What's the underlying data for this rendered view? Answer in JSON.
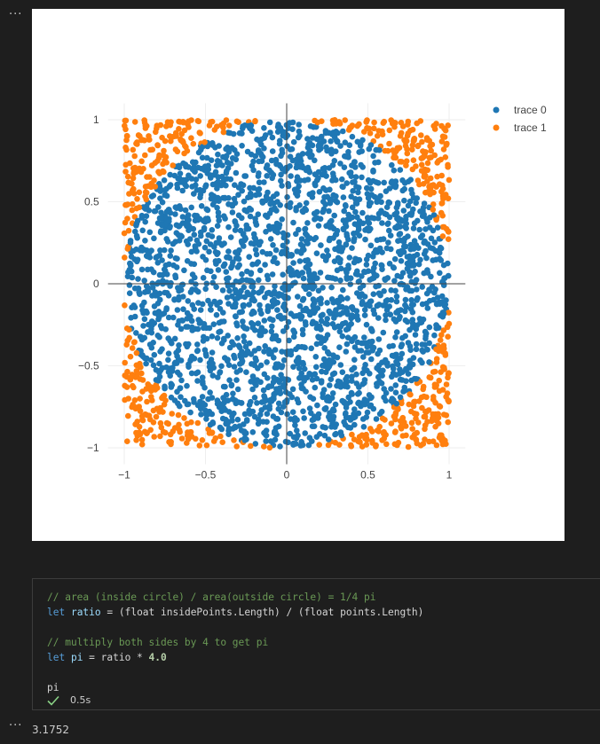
{
  "chart_data": {
    "type": "scatter",
    "xlim": [
      -1.1,
      1.1
    ],
    "ylim": [
      -1.1,
      1.1
    ],
    "x_ticks": [
      -1,
      -0.5,
      0,
      0.5,
      1
    ],
    "y_ticks": [
      -1,
      -0.5,
      0,
      0.5,
      1
    ],
    "x_tick_labels": [
      "−1",
      "−0.5",
      "0",
      "0.5",
      "1"
    ],
    "y_tick_labels": [
      "−1",
      "−0.5",
      "0",
      "0.5",
      "1"
    ],
    "grid": true,
    "zero_lines": true,
    "legend_position": "top-right",
    "sample_count": 3000,
    "radius": 1,
    "series": [
      {
        "name": "trace 0",
        "color": "#1f77b4",
        "region": "inside unit circle"
      },
      {
        "name": "trace 1",
        "color": "#ff7f0e",
        "region": "outside unit circle"
      }
    ]
  },
  "code_cell": {
    "lines": [
      [
        {
          "t": "// area (inside circle) / area(outside circle) = 1/4 pi",
          "c": "comment"
        }
      ],
      [
        {
          "t": "let ",
          "c": "kw"
        },
        {
          "t": "ratio",
          "c": "id"
        },
        {
          "t": " = (",
          "c": "plain"
        },
        {
          "t": "float",
          "c": "plain"
        },
        {
          "t": " insidePoints.Length) / (",
          "c": "plain"
        },
        {
          "t": "float",
          "c": "plain"
        },
        {
          "t": " points.Length)",
          "c": "plain"
        }
      ],
      [],
      [
        {
          "t": "// multiply both sides by 4 to get pi",
          "c": "comment"
        }
      ],
      [
        {
          "t": "let ",
          "c": "kw"
        },
        {
          "t": "pi",
          "c": "id"
        },
        {
          "t": " = ratio * ",
          "c": "plain"
        },
        {
          "t": "4.0",
          "c": "num"
        }
      ],
      [],
      [
        {
          "t": "pi",
          "c": "plain"
        }
      ]
    ],
    "exec_time": "0.5s"
  },
  "output_value": "3.1752",
  "more_label": "···"
}
